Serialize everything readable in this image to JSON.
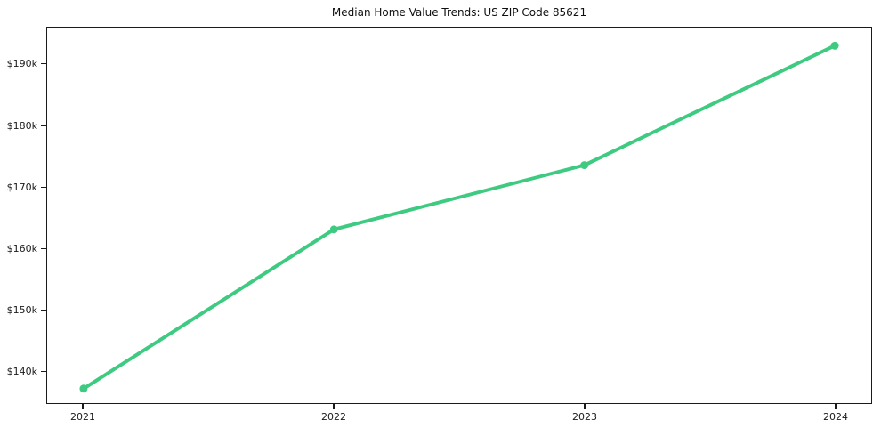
{
  "chart_data": {
    "type": "line",
    "title": "Median Home Value Trends: US ZIP Code 85621",
    "categories": [
      "2021",
      "2022",
      "2023",
      "2024"
    ],
    "series": [
      {
        "name": "Median Home Value",
        "values": [
          137100,
          163100,
          173600,
          193100
        ]
      }
    ],
    "xlabel": "",
    "ylabel": "",
    "yticks": [
      {
        "label": "$140k",
        "value": 140000
      },
      {
        "label": "$150k",
        "value": 150000
      },
      {
        "label": "$160k",
        "value": 160000
      },
      {
        "label": "$170k",
        "value": 170000
      },
      {
        "label": "$180k",
        "value": 180000
      },
      {
        "label": "$190k",
        "value": 190000
      }
    ],
    "ylim": [
      134750,
      196050
    ],
    "grid": false,
    "legend": "none",
    "line_color": "#3ecb81",
    "marker_color": "#3ecb81",
    "axis_color": "#1a1a1a",
    "background_color": "#ffffff"
  }
}
